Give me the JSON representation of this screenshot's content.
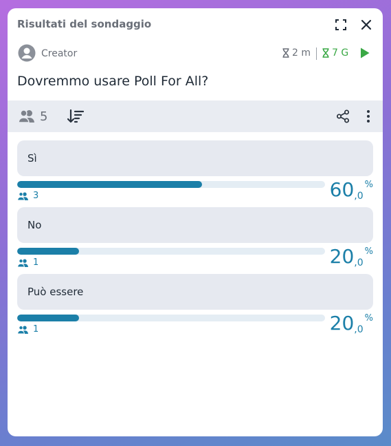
{
  "header": {
    "title": "Risultati del sondaggio"
  },
  "meta": {
    "creator": "Creator",
    "timer_elapsed": "2 m",
    "timer_remaining": "7 G"
  },
  "poll": {
    "question": "Dovremmo usare Poll For All?",
    "participants": "5",
    "options": [
      {
        "label": "Sì",
        "votes": "3",
        "pct_int": "60",
        "pct_dec": ",0",
        "pct_sym": "%",
        "fraction": 0.6
      },
      {
        "label": "No",
        "votes": "1",
        "pct_int": "20",
        "pct_dec": ",0",
        "pct_sym": "%",
        "fraction": 0.2
      },
      {
        "label": "Può essere",
        "votes": "1",
        "pct_int": "20",
        "pct_dec": ",0",
        "pct_sym": "%",
        "fraction": 0.2
      }
    ]
  },
  "icons": {
    "fullscreen": "fullscreen-icon",
    "close": "close-icon",
    "avatar": "avatar-icon",
    "hourglass": "hourglass-icon",
    "play": "play-icon",
    "group": "group-icon",
    "sort": "sort-icon",
    "share": "share-icon",
    "more": "more-vertical-icon"
  },
  "colors": {
    "accent": "#1b7fa8",
    "remaining_green": "#3aa845",
    "muted": "#6a6f78",
    "option_bg": "#e6e9f0",
    "toolbar_bg": "#e9ecf2"
  }
}
